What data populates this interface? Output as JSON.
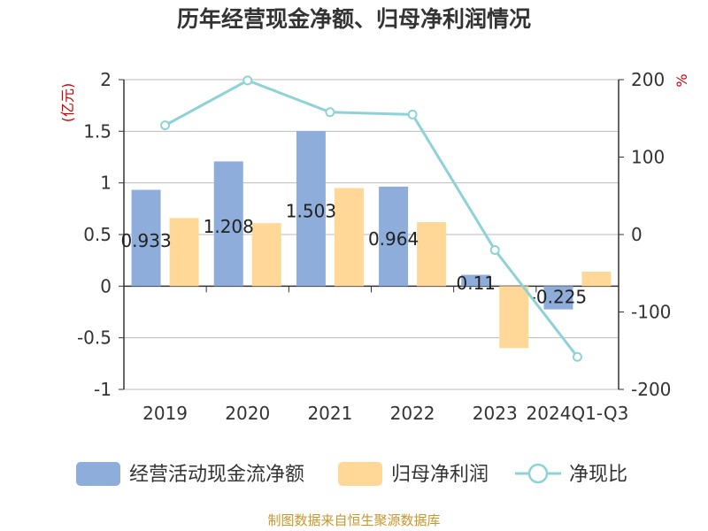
{
  "colors": {
    "series1": "#8eadda",
    "series2": "#ffd898",
    "series3": "#8dd3d6",
    "left_unit": "#cc0000",
    "source": "#c9962c",
    "axis": "#333333",
    "grid": "#bbbbbb"
  },
  "chart_data": {
    "type": "bar",
    "title": "历年经营现金净额、归母净利润情况",
    "categories": [
      "2019",
      "2020",
      "2021",
      "2022",
      "2023",
      "2024Q1-Q3"
    ],
    "series": [
      {
        "name": "经营活动现金流净额",
        "type": "bar",
        "axis": "left",
        "values": [
          0.933,
          1.208,
          1.503,
          0.964,
          0.11,
          -0.225
        ],
        "labels": [
          "0.933",
          "1.208",
          "1.503",
          "0.964",
          "0.11",
          "-0.225"
        ]
      },
      {
        "name": "归母净利润",
        "type": "bar",
        "axis": "left",
        "values": [
          0.66,
          0.61,
          0.95,
          0.62,
          -0.6,
          0.14
        ]
      },
      {
        "name": "净现比",
        "type": "line",
        "axis": "right",
        "values": [
          141,
          199,
          158,
          155,
          -20,
          -158
        ]
      }
    ],
    "left_axis": {
      "unit": "(亿元)",
      "ylim": [
        -1,
        2
      ],
      "ticks": [
        -1,
        -0.5,
        0,
        0.5,
        1,
        1.5,
        2
      ],
      "tick_labels": [
        "-1",
        "-0.5",
        "0",
        "0.5",
        "1",
        "1.5",
        "2"
      ]
    },
    "right_axis": {
      "unit": "%",
      "ylim": [
        -200,
        200
      ],
      "ticks": [
        -200,
        -100,
        0,
        100,
        200
      ],
      "tick_labels": [
        "-200",
        "-100",
        "0",
        "100",
        "200"
      ]
    },
    "legend": {
      "position": "bottom",
      "entries": [
        "经营活动现金流净额",
        "归母净利润",
        "净现比"
      ]
    },
    "source": "制图数据来自恒生聚源数据库"
  }
}
